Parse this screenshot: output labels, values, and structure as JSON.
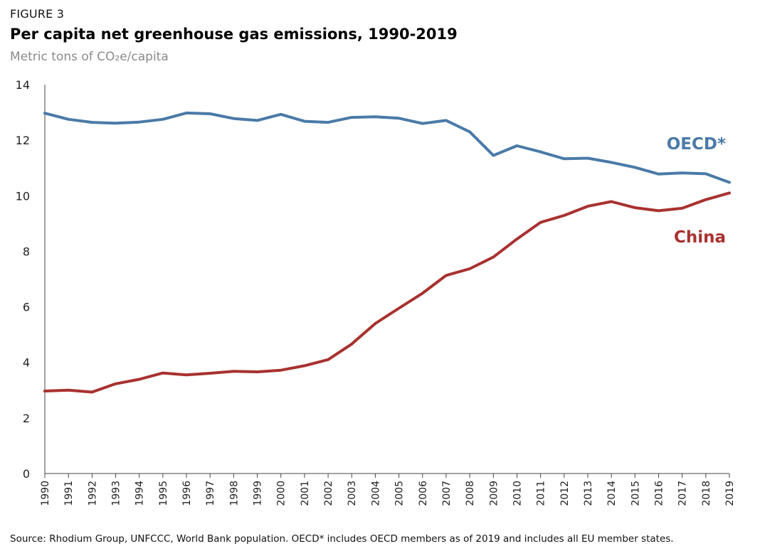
{
  "figure_label": "FIGURE 3",
  "title": "Per capita net greenhouse gas emissions, 1990-2019",
  "subtitle": "Metric tons of CO₂e/capita",
  "source": "Source: Rhodium Group, UNFCCC, World Bank population. OECD* includes OECD members as of 2019 and includes all EU member states.",
  "chart_data": {
    "type": "line",
    "title": "Per capita net greenhouse gas emissions, 1990-2019",
    "ylabel": "Metric tons of CO₂e/capita",
    "xlabel": "",
    "ylim": [
      0,
      14
    ],
    "yticks": [
      0,
      2,
      4,
      6,
      8,
      10,
      12,
      14
    ],
    "grid": false,
    "legend": "inline labels at right end of lines",
    "x": [
      1990,
      1991,
      1992,
      1993,
      1994,
      1995,
      1996,
      1997,
      1998,
      1999,
      2000,
      2001,
      2002,
      2003,
      2004,
      2005,
      2006,
      2007,
      2008,
      2009,
      2010,
      2011,
      2012,
      2013,
      2014,
      2015,
      2016,
      2017,
      2018,
      2019
    ],
    "series": [
      {
        "name": "OECD*",
        "color": "#4a7aa8",
        "values": [
          12.97,
          12.75,
          12.64,
          12.61,
          12.65,
          12.75,
          12.98,
          12.95,
          12.78,
          12.71,
          12.93,
          12.68,
          12.64,
          12.82,
          12.84,
          12.79,
          12.6,
          12.71,
          12.3,
          11.45,
          11.8,
          11.58,
          11.33,
          11.35,
          11.2,
          11.02,
          10.78,
          10.82,
          10.79,
          10.48
        ]
      },
      {
        "name": "China",
        "color": "#a8312f",
        "values": [
          2.97,
          3.0,
          2.93,
          3.23,
          3.39,
          3.62,
          3.55,
          3.61,
          3.68,
          3.66,
          3.72,
          3.88,
          4.1,
          4.66,
          5.4,
          5.95,
          6.49,
          7.13,
          7.37,
          7.79,
          8.44,
          9.04,
          9.29,
          9.62,
          9.79,
          9.57,
          9.46,
          9.55,
          9.86,
          10.1
        ]
      }
    ]
  }
}
